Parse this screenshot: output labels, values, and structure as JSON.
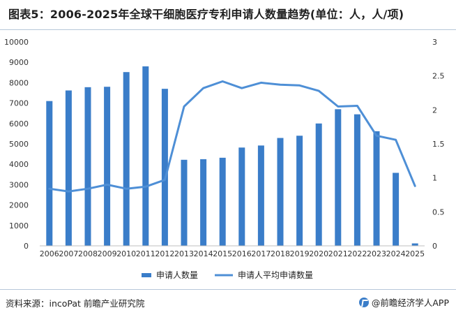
{
  "header": {
    "title": "图表5：2006-2025年全球干细胞医疗专利申请人数量趋势(单位：人，人/项)"
  },
  "footer": {
    "source": "资料来源：incoPat 前瞻产业研究院",
    "brand": "@前瞻经济学人APP"
  },
  "colors": {
    "bar": "#3a7dc9",
    "line": "#4e8fd6",
    "divider": "#b7c7d9"
  },
  "chart_data": {
    "type": "bar",
    "categories": [
      "2006",
      "2007",
      "2008",
      "2009",
      "2010",
      "2011",
      "2012",
      "2013",
      "2014",
      "2015",
      "2016",
      "2017",
      "2018",
      "2019",
      "2020",
      "2021",
      "2022",
      "2023",
      "2024",
      "2025"
    ],
    "series": [
      {
        "name": "申请人数量",
        "type": "bar",
        "axis": "left",
        "values": [
          7100,
          7620,
          7780,
          7800,
          8520,
          8800,
          7700,
          4220,
          4250,
          4320,
          4820,
          4920,
          5290,
          5400,
          6000,
          6700,
          6450,
          5620,
          3580,
          120
        ]
      },
      {
        "name": "申请人平均申请数量",
        "type": "line",
        "axis": "right",
        "values": [
          0.84,
          0.8,
          0.84,
          0.9,
          0.84,
          0.87,
          0.97,
          2.05,
          2.32,
          2.42,
          2.32,
          2.4,
          2.37,
          2.36,
          2.28,
          2.05,
          2.06,
          1.62,
          1.56,
          0.88
        ]
      }
    ],
    "y_left": {
      "min": 0,
      "max": 10000,
      "ticks": [
        "0",
        "1000",
        "2000",
        "3000",
        "4000",
        "5000",
        "6000",
        "7000",
        "8000",
        "9000",
        "10000"
      ]
    },
    "y_right": {
      "min": 0,
      "max": 3,
      "ticks": [
        "0",
        "0.5",
        "1",
        "1.5",
        "2",
        "2.5",
        "3"
      ]
    },
    "grid": false,
    "legend_position": "bottom"
  }
}
